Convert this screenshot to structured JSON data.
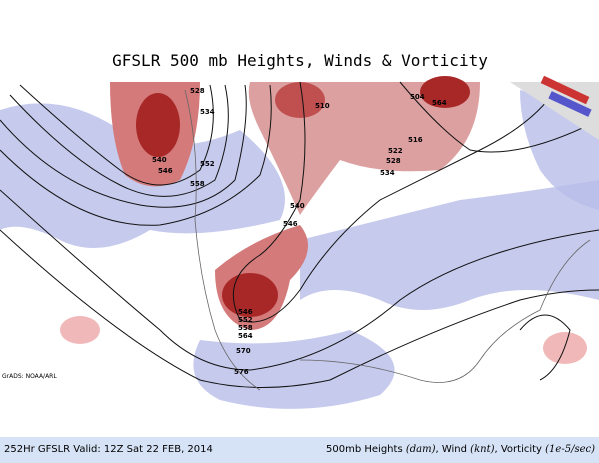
{
  "header": {
    "title": "GFSLR 500 mb Heights, Winds & Vorticity"
  },
  "map": {
    "contour_labels": [
      "528",
      "534",
      "540",
      "546",
      "552",
      "558",
      "510",
      "504",
      "564",
      "516",
      "522",
      "528",
      "534",
      "540",
      "546",
      "546",
      "552",
      "558",
      "564",
      "570",
      "576"
    ],
    "credit": "GrADS: NOAA/ARL"
  },
  "footer": {
    "left": "252Hr GFSLR Valid: 12Z Sat 22 FEB, 2014",
    "right": [
      "500mb Heights ",
      "(dam)",
      ", Wind ",
      "(knt)",
      ", Vorticity ",
      "(1e-5/sec)"
    ]
  }
}
